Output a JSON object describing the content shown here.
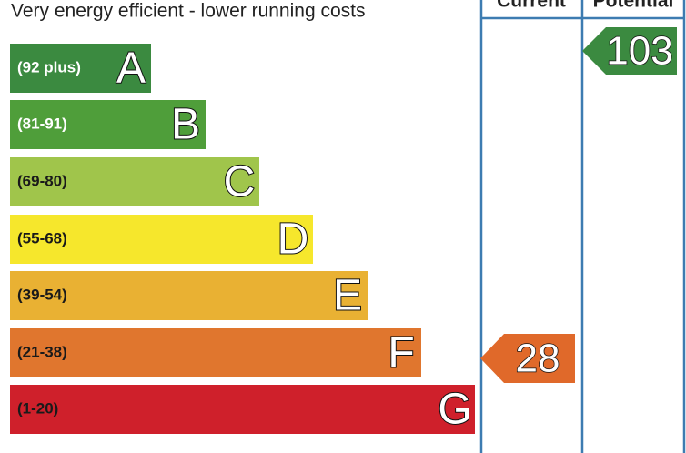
{
  "header": {
    "title": "Very energy efficient - lower running costs"
  },
  "columns": [
    {
      "label": "Current"
    },
    {
      "label": "Potential"
    }
  ],
  "bands": [
    {
      "range": "(92 plus)",
      "letter": "A",
      "color": "#3b8a40",
      "text_color": "#ffffff"
    },
    {
      "range": "(81-91)",
      "letter": "B",
      "color": "#4f9e3a",
      "text_color": "#ffffff"
    },
    {
      "range": "(69-80)",
      "letter": "C",
      "color": "#a0c54b",
      "text_color": "#1a1a1a"
    },
    {
      "range": "(55-68)",
      "letter": "D",
      "color": "#f6e72c",
      "text_color": "#1a1a1a"
    },
    {
      "range": "(39-54)",
      "letter": "E",
      "color": "#e9b133",
      "text_color": "#1a1a1a"
    },
    {
      "range": "(21-38)",
      "letter": "F",
      "color": "#e0762e",
      "text_color": "#1a1a1a"
    },
    {
      "range": "(1-20)",
      "letter": "G",
      "color": "#cf202b",
      "text_color": "#1a1a1a"
    }
  ],
  "ratings": {
    "current": {
      "value": "28",
      "color": "#e0692a"
    },
    "potential": {
      "value": "103",
      "color": "#3b8a40"
    }
  }
}
